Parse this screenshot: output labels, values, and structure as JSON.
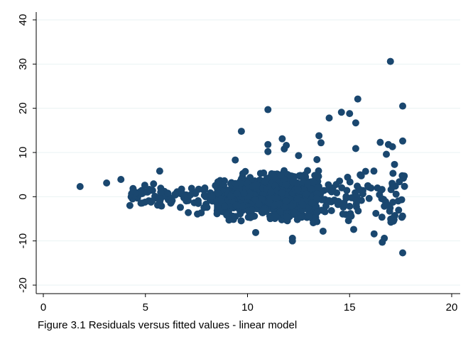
{
  "caption": "Figure 3.1 Residuals versus fitted values - linear model",
  "colors": {
    "marker": "#1a476f",
    "grid": "#eaf2f3",
    "axis": "#000000",
    "background": "#ffffff"
  },
  "chart_data": {
    "type": "scatter",
    "title": "",
    "xlabel": "",
    "ylabel": "",
    "xlim": [
      0,
      20
    ],
    "ylim": [
      -20,
      40
    ],
    "xticks": [
      "0",
      "5",
      "10",
      "15",
      "20"
    ],
    "yticks": [
      "-20",
      "-10",
      "0",
      "10",
      "20",
      "30",
      "40"
    ],
    "grid": "horizontal",
    "legend": "none",
    "notable_points": [
      [
        1.8,
        2.3
      ],
      [
        3.1,
        3.1
      ],
      [
        3.8,
        3.9
      ],
      [
        4.4,
        1.3
      ],
      [
        5.4,
        2.9
      ],
      [
        5.7,
        5.8
      ],
      [
        7.1,
        -3.6
      ],
      [
        9.7,
        14.8
      ],
      [
        9.4,
        8.3
      ],
      [
        10.4,
        -8.1
      ],
      [
        11.0,
        19.7
      ],
      [
        11.0,
        11.8
      ],
      [
        11.0,
        10.2
      ],
      [
        11.8,
        10.8
      ],
      [
        11.9,
        11.6
      ],
      [
        11.7,
        13.1
      ],
      [
        12.2,
        -9.4
      ],
      [
        12.2,
        -10.0
      ],
      [
        12.5,
        9.3
      ],
      [
        13.4,
        8.4
      ],
      [
        13.5,
        13.8
      ],
      [
        13.6,
        12.2
      ],
      [
        14.0,
        17.8
      ],
      [
        14.6,
        19.1
      ],
      [
        15.0,
        18.8
      ],
      [
        15.4,
        22.1
      ],
      [
        15.3,
        16.7
      ],
      [
        15.3,
        10.9
      ],
      [
        16.5,
        12.3
      ],
      [
        16.8,
        9.6
      ],
      [
        16.9,
        11.8
      ],
      [
        17.0,
        30.6
      ],
      [
        17.1,
        11.3
      ],
      [
        17.2,
        7.3
      ],
      [
        17.6,
        20.5
      ],
      [
        17.6,
        12.6
      ],
      [
        17.6,
        -12.7
      ],
      [
        16.6,
        -10.3
      ],
      [
        16.7,
        -9.4
      ],
      [
        16.2,
        -8.4
      ],
      [
        15.2,
        -7.4
      ],
      [
        13.7,
        -7.8
      ]
    ],
    "dense_cloud": {
      "n": 1050,
      "x_range": [
        4.2,
        17.7
      ],
      "x_peak": [
        8.5,
        13.5
      ],
      "center": 0,
      "spread_rule": "residual spread widens with fitted value (approx. 1.1 at x=4 to 4.5 at x=17)",
      "y_clip": [
        -6,
        6
      ]
    }
  }
}
